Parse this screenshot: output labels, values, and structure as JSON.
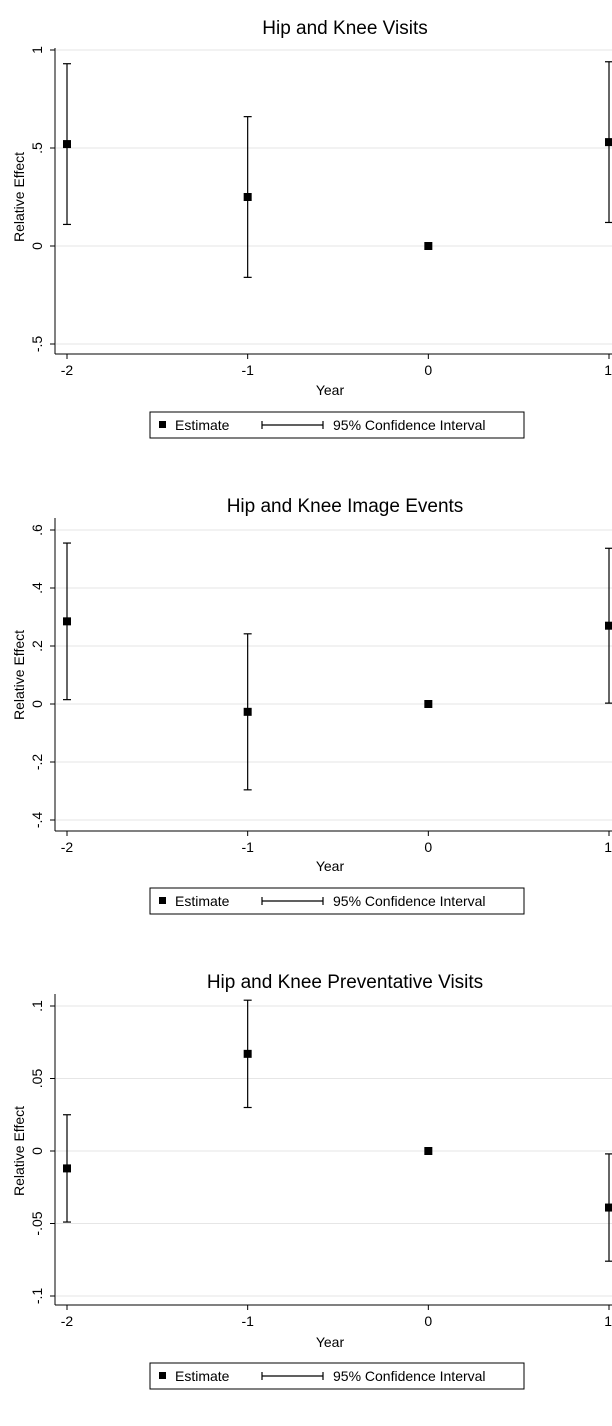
{
  "chart_data": [
    {
      "type": "scatter",
      "title": "Hip and Knee Visits",
      "xlabel": "Year",
      "ylabel": "Relative Effect",
      "x_ticks": [
        "-2",
        "-1",
        "0",
        "1"
      ],
      "y_ticks": [
        "-.5",
        "0",
        ".5",
        "1"
      ],
      "xlim": [
        -2,
        1
      ],
      "ylim": [
        -0.5,
        1
      ],
      "grid": true,
      "legend": {
        "position": "bottom",
        "entries": [
          "Estimate",
          "95% Confidence Interval"
        ]
      },
      "series": [
        {
          "name": "Estimate",
          "x": [
            -2,
            -1,
            0,
            1
          ],
          "y": [
            0.52,
            0.25,
            0.0,
            0.53
          ]
        },
        {
          "name": "95% Confidence Interval",
          "x": [
            -2,
            -1,
            0,
            1
          ],
          "lower": [
            0.11,
            -0.16,
            null,
            0.12
          ],
          "upper": [
            0.93,
            0.66,
            null,
            0.94
          ]
        }
      ]
    },
    {
      "type": "scatter",
      "title": "Hip and Knee Image Events",
      "xlabel": "Year",
      "ylabel": "Relative Effect",
      "x_ticks": [
        "-2",
        "-1",
        "0",
        "1"
      ],
      "y_ticks": [
        "-.4",
        "-.2",
        "0",
        ".2",
        ".4",
        ".6"
      ],
      "xlim": [
        -2,
        1
      ],
      "ylim": [
        -0.4,
        0.6
      ],
      "grid": true,
      "legend": {
        "position": "bottom",
        "entries": [
          "Estimate",
          "95% Confidence Interval"
        ]
      },
      "series": [
        {
          "name": "Estimate",
          "x": [
            -2,
            -1,
            0,
            1
          ],
          "y": [
            0.285,
            -0.027,
            0.0,
            0.27
          ]
        },
        {
          "name": "95% Confidence Interval",
          "x": [
            -2,
            -1,
            0,
            1
          ],
          "lower": [
            0.015,
            -0.296,
            null,
            0.003
          ],
          "upper": [
            0.555,
            0.242,
            null,
            0.537
          ]
        }
      ]
    },
    {
      "type": "scatter",
      "title": "Hip and Knee Preventative Visits",
      "xlabel": "Year",
      "ylabel": "Relative Effect",
      "x_ticks": [
        "-2",
        "-1",
        "0",
        "1"
      ],
      "y_ticks": [
        "-.1",
        "-.05",
        "0",
        ".05",
        ".1"
      ],
      "xlim": [
        -2,
        1
      ],
      "ylim": [
        -0.1,
        0.1
      ],
      "grid": true,
      "legend": {
        "position": "bottom",
        "entries": [
          "Estimate",
          "95% Confidence Interval"
        ]
      },
      "series": [
        {
          "name": "Estimate",
          "x": [
            -2,
            -1,
            0,
            1
          ],
          "y": [
            -0.012,
            0.067,
            0.0,
            -0.039
          ]
        },
        {
          "name": "95% Confidence Interval",
          "x": [
            -2,
            -1,
            0,
            1
          ],
          "lower": [
            -0.049,
            0.03,
            null,
            -0.076
          ],
          "upper": [
            0.025,
            0.104,
            null,
            -0.002
          ]
        }
      ]
    }
  ]
}
